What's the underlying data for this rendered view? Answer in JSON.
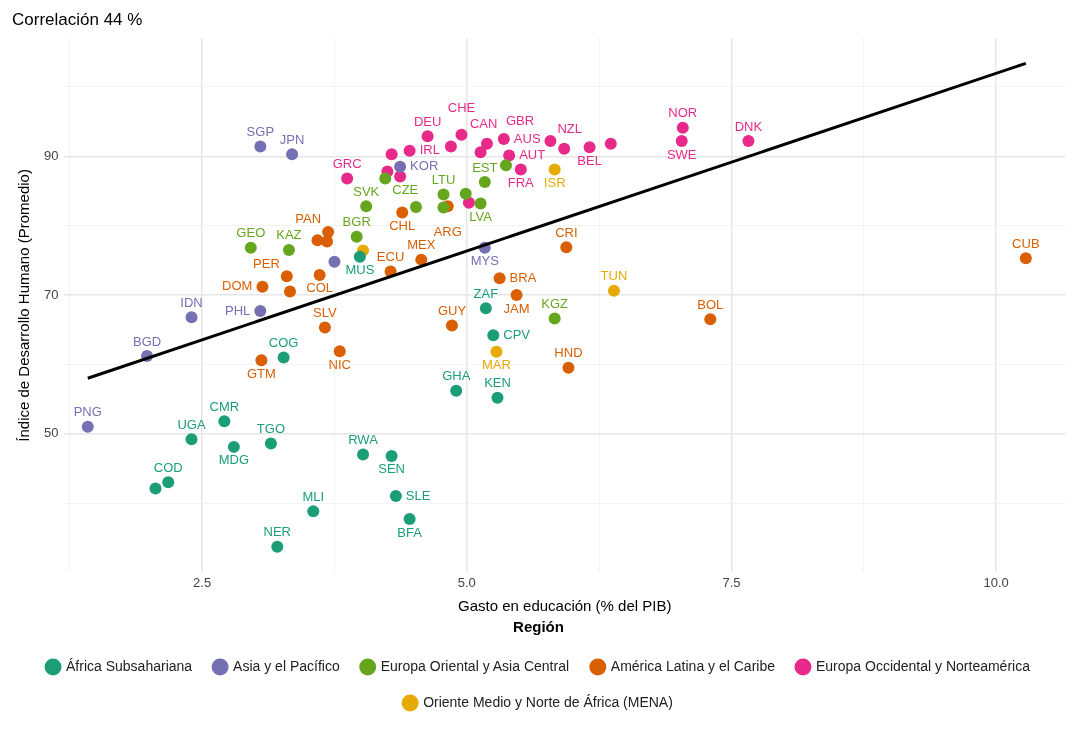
{
  "chart_data": {
    "type": "scatter",
    "title": "Correlación 44 %",
    "xlabel": "Gasto en educación (% del PIB)",
    "ylabel": "Índice de Desarrollo Humano (Promedio)",
    "legend_title": "Región",
    "legend": "bottom",
    "grid": true,
    "xlim": [
      1.2,
      10.65
    ],
    "ylim": [
      30,
      107
    ],
    "xticks": [
      {
        "value": 1.25,
        "label": null
      },
      2.5,
      {
        "value": 3.75,
        "label": null
      },
      {
        "value": 5,
        "label": "5.0"
      },
      {
        "value": 6.25,
        "label": null
      },
      7.5,
      {
        "value": 8.75,
        "label": null
      },
      {
        "value": 10,
        "label": "10.0"
      }
    ],
    "yticks": [
      {
        "value": 40,
        "label": null
      },
      50,
      {
        "value": 60,
        "label": null
      },
      70,
      {
        "value": 80,
        "label": null
      },
      90,
      {
        "value": 100,
        "label": null
      }
    ],
    "series": [
      {
        "name": "África Subsahariana",
        "color": "#1b9e77",
        "marker": "circle",
        "x": [
          3.99,
          5.18,
          5.25,
          3.27,
          4.9,
          5.29,
          2.71,
          2.4,
          2.8,
          3.15,
          4.02,
          4.29,
          2.18,
          2.06,
          4.33,
          3.55,
          4.46,
          3.21
        ],
        "values": [
          75.5,
          68.1,
          64.2,
          61.0,
          56.2,
          55.2,
          51.8,
          49.2,
          48.1,
          48.6,
          47.0,
          46.8,
          43.0,
          42.1,
          41.0,
          38.8,
          37.7,
          33.7
        ],
        "value_labels": [
          "MUS",
          "ZAF",
          "CPV",
          "COG",
          "GHA",
          "KEN",
          "CMR",
          "UGA",
          "MDG",
          "TGO",
          "RWA",
          "SEN",
          "COD",
          null,
          "SLE",
          "MLI",
          "BFA",
          "NER"
        ]
      },
      {
        "name": "Asia y el Pacífico",
        "color": "#7570b3",
        "marker": "circle",
        "x": [
          3.05,
          3.35,
          4.37,
          5.17,
          3.75,
          3.05,
          2.4,
          1.98,
          1.42
        ],
        "values": [
          91.4,
          90.3,
          88.5,
          76.8,
          74.8,
          67.7,
          66.8,
          61.2,
          51.0
        ],
        "value_labels": [
          "SGP",
          "JPN",
          "KOR",
          "MYS",
          null,
          "PHL",
          "IDN",
          "BGD",
          "PNG"
        ]
      },
      {
        "name": "Europa Oriental y Asia Central",
        "color": "#66a61e",
        "marker": "circle",
        "x": [
          2.96,
          3.32,
          3.96,
          4.05,
          4.23,
          4.52,
          4.78,
          4.78,
          4.99,
          5.13,
          5.17,
          5.37,
          5.83
        ],
        "values": [
          76.8,
          76.5,
          78.4,
          82.8,
          86.8,
          82.7,
          84.5,
          82.6,
          84.6,
          83.2,
          86.3,
          88.7,
          66.6
        ],
        "value_labels": [
          "GEO",
          "KAZ",
          "BGR",
          "SVK",
          "CZE",
          null,
          "LTU",
          null,
          null,
          "LVA",
          "EST",
          null,
          "KGZ"
        ]
      },
      {
        "name": "América Latina y el Caribe",
        "color": "#d95f02",
        "marker": "circle",
        "x": [
          3.69,
          3.59,
          3.68,
          4.39,
          4.57,
          4.28,
          3.61,
          3.3,
          3.33,
          3.07,
          3.66,
          3.8,
          3.06,
          4.82,
          4.86,
          5.31,
          5.47,
          5.94,
          5.96,
          7.3,
          10.28
        ],
        "values": [
          79.1,
          77.9,
          77.7,
          81.9,
          75.1,
          73.4,
          72.9,
          72.7,
          70.5,
          71.2,
          65.3,
          61.9,
          60.6,
          82.8,
          65.6,
          72.4,
          70.0,
          76.9,
          59.5,
          66.5,
          75.3
        ],
        "value_labels": [
          "PAN",
          null,
          null,
          "CHL",
          "MEX",
          "ECU",
          "COL",
          "PER",
          null,
          "DOM",
          "SLV",
          "NIC",
          "GTM",
          "ARG",
          "GUY",
          "BRA",
          "JAM",
          "CRI",
          "HND",
          "BOL",
          "CUB"
        ]
      },
      {
        "name": "Europa Occidental y Norteamérica",
        "color": "#e7298a",
        "marker": "circle",
        "x": [
          3.87,
          4.29,
          4.25,
          4.37,
          4.46,
          4.63,
          4.85,
          4.95,
          5.13,
          5.19,
          5.35,
          5.4,
          5.51,
          5.79,
          5.92,
          6.16,
          6.36,
          7.04,
          7.03,
          7.66,
          5.02
        ],
        "values": [
          86.8,
          90.3,
          87.8,
          87.1,
          90.8,
          92.9,
          91.4,
          93.1,
          90.6,
          91.8,
          92.5,
          90.1,
          88.1,
          92.2,
          91.1,
          91.3,
          91.8,
          94.1,
          92.2,
          92.2,
          83.3
        ],
        "value_labels": [
          "GRC",
          null,
          null,
          null,
          "IRL",
          "DEU",
          "CAN",
          "CHE",
          null,
          "GBR",
          "AUS",
          "AUT",
          "FRA",
          "NZL",
          null,
          "BEL",
          null,
          "NOR",
          "SWE",
          "DNK",
          null
        ]
      },
      {
        "name": "Oriente Medio y Norte de África (MENA)",
        "color": "#e6ab02",
        "marker": "circle",
        "x": [
          4.02,
          5.83,
          6.39,
          5.28
        ],
        "values": [
          76.4,
          88.1,
          70.6,
          61.8
        ],
        "value_labels": [
          null,
          "ISR",
          "TUN",
          "MAR"
        ]
      },
      {
        "type": "line",
        "color": "#000000",
        "marker": "none",
        "x": [
          1.42,
          10.28
        ],
        "values": [
          58.0,
          103.4
        ]
      }
    ]
  }
}
